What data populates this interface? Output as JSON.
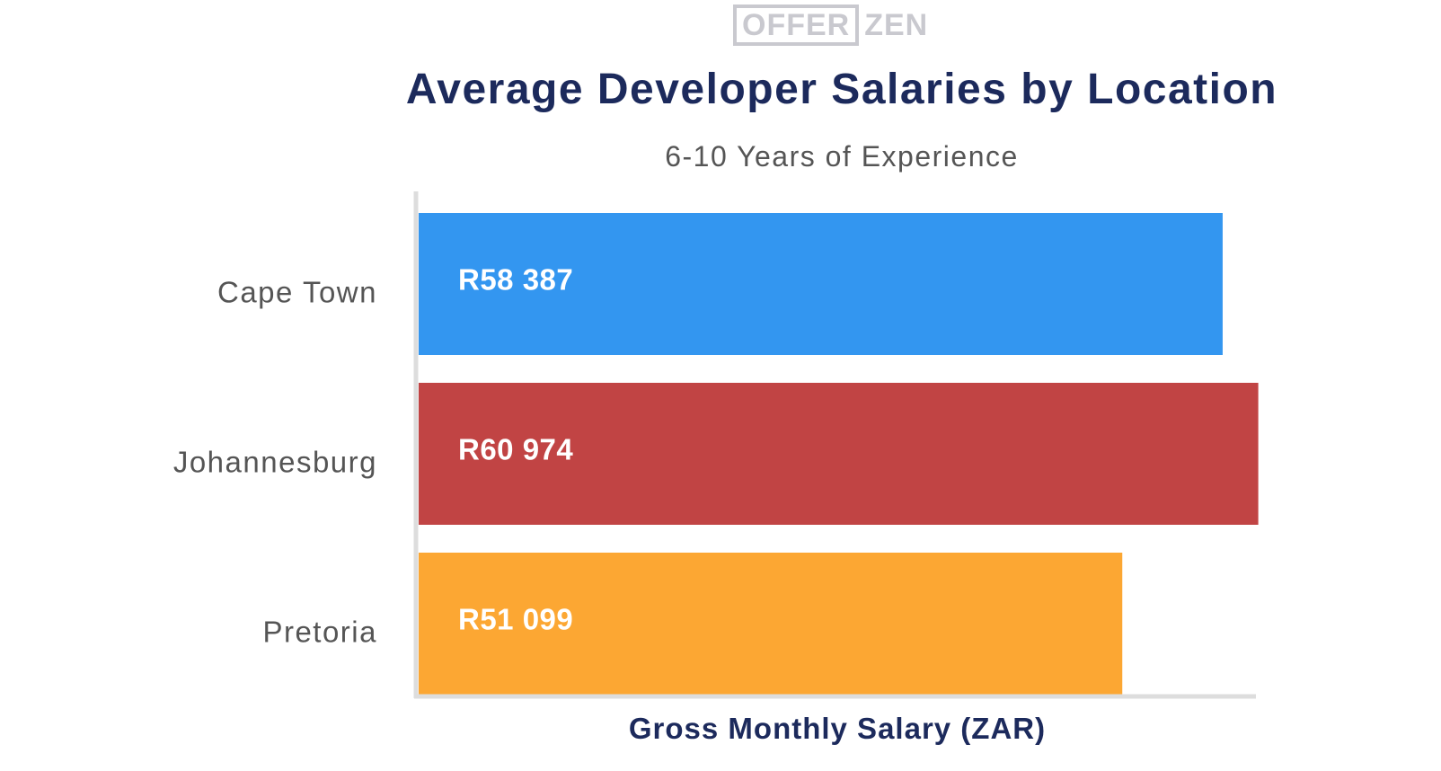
{
  "logo": {
    "boxed_text": "OFFER",
    "rest_text": "ZEN"
  },
  "chart_data": {
    "type": "bar",
    "orientation": "horizontal",
    "title": "Average Developer Salaries by Location",
    "subtitle": "6-10 Years of Experience",
    "xlabel": "Gross Monthly Salary (ZAR)",
    "ylabel": "",
    "categories": [
      "Cape Town",
      "Johannesburg",
      "Pretoria"
    ],
    "values": [
      58387,
      60974,
      51099
    ],
    "value_labels": [
      "R58 387",
      "R60 974",
      "R51 099"
    ],
    "colors": [
      "#3396f0",
      "#c14444",
      "#fca733"
    ],
    "xlim": [
      0,
      61000
    ],
    "grid": false,
    "legend": "none"
  }
}
